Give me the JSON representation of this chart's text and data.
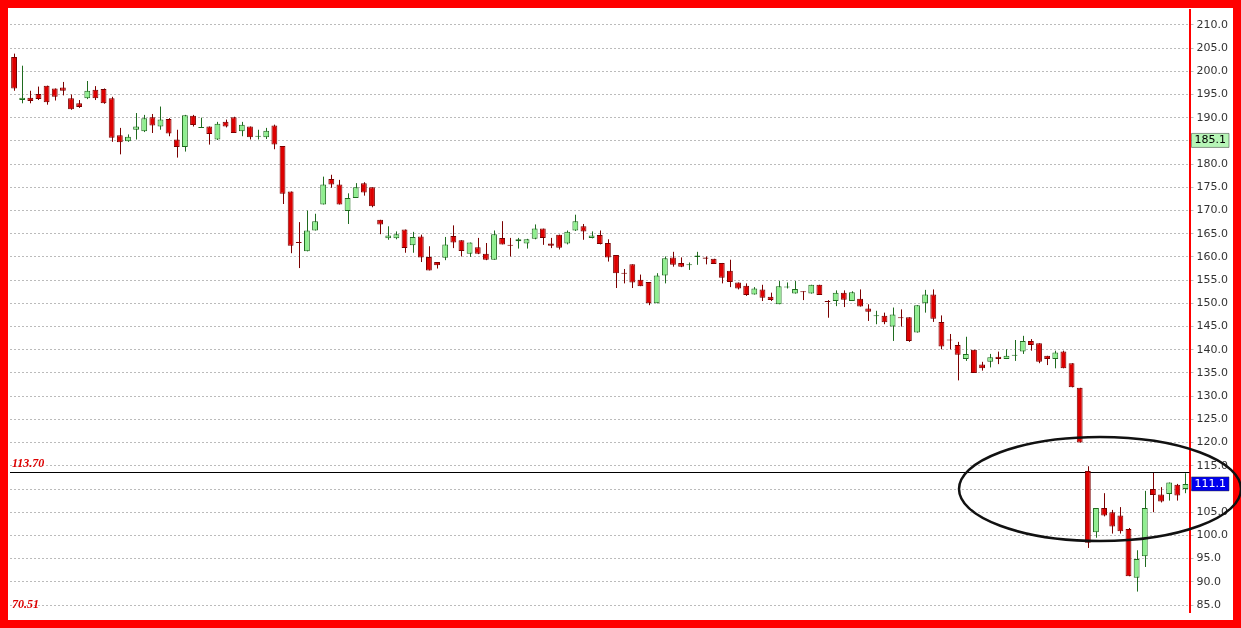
{
  "chart_data": {
    "type": "candlestick",
    "categories": [
      null,
      null,
      null,
      null,
      null,
      null,
      null,
      null,
      null,
      null,
      null,
      null,
      null,
      null,
      null,
      null,
      null,
      null,
      null,
      null,
      null,
      null,
      null,
      null,
      null,
      null,
      null,
      null,
      null,
      null,
      null,
      null,
      null,
      null,
      null,
      null,
      null,
      null,
      null,
      null,
      null,
      null,
      null,
      null,
      null,
      null,
      null,
      null,
      null,
      null,
      null,
      null,
      null,
      null,
      null,
      null,
      null,
      null,
      null,
      null,
      null,
      null,
      null,
      null,
      null,
      null,
      null,
      null,
      null,
      null,
      null,
      null,
      null,
      null,
      null,
      null,
      null,
      null,
      null,
      null,
      null,
      null,
      null,
      null,
      null,
      null,
      null,
      null,
      null,
      null,
      null,
      null,
      null,
      null,
      null,
      null,
      null,
      null,
      null,
      null,
      null,
      null,
      null,
      null,
      null,
      null,
      null,
      null,
      null,
      null,
      null,
      null,
      null,
      null,
      null,
      null,
      null,
      null,
      null,
      null,
      null,
      null,
      null,
      null,
      null,
      null,
      null,
      null,
      null,
      null,
      null,
      null,
      null,
      null,
      null,
      null,
      null,
      null,
      null,
      null,
      null,
      null,
      null,
      null,
      null
    ],
    "ohlc": [
      [
        203.1,
        203.8,
        195.8,
        196.3
      ],
      [
        193.8,
        201.2,
        193.1,
        194.3
      ],
      [
        194.3,
        195.8,
        193.1,
        193.6
      ],
      [
        195.1,
        196.7,
        193.8,
        194.0
      ],
      [
        196.9,
        196.9,
        192.8,
        193.3
      ],
      [
        196.3,
        196.3,
        193.7,
        194.5
      ],
      [
        196.5,
        197.7,
        194.8,
        195.8
      ],
      [
        194.2,
        195.0,
        191.7,
        191.8
      ],
      [
        193.1,
        193.8,
        192.1,
        192.3
      ],
      [
        194.2,
        197.9,
        194.0,
        195.8
      ],
      [
        196.0,
        196.8,
        193.8,
        194.2
      ],
      [
        196.2,
        196.3,
        193.0,
        193.1
      ],
      [
        194.2,
        194.5,
        184.8,
        185.7
      ],
      [
        186.2,
        187.8,
        182.1,
        184.7
      ],
      [
        184.9,
        186.4,
        184.8,
        185.9
      ],
      [
        187.4,
        191.0,
        185.3,
        188.1
      ],
      [
        187.1,
        190.6,
        186.9,
        189.9
      ],
      [
        190.1,
        190.8,
        186.7,
        188.3
      ],
      [
        188.1,
        192.4,
        187.4,
        189.6
      ],
      [
        189.7,
        189.9,
        186.0,
        186.6
      ],
      [
        185.3,
        187.4,
        181.4,
        183.7
      ],
      [
        183.7,
        190.6,
        182.7,
        190.5
      ],
      [
        190.4,
        190.6,
        188.1,
        188.4
      ],
      [
        187.8,
        190.0,
        187.8,
        188.0
      ],
      [
        188.1,
        188.1,
        184.2,
        186.5
      ],
      [
        185.3,
        189.1,
        185.2,
        188.7
      ],
      [
        189.1,
        189.6,
        187.9,
        188.1
      ],
      [
        190.1,
        190.2,
        186.7,
        186.7
      ],
      [
        187.1,
        189.1,
        186.0,
        188.5
      ],
      [
        188.1,
        188.1,
        185.3,
        185.8
      ],
      [
        185.9,
        187.4,
        185.3,
        186.1
      ],
      [
        185.8,
        187.8,
        185.4,
        187.2
      ],
      [
        188.3,
        188.5,
        183.2,
        184.2
      ],
      [
        183.9,
        183.9,
        171.4,
        173.6
      ],
      [
        174.1,
        174.1,
        160.8,
        162.4
      ],
      [
        163.1,
        167.5,
        157.6,
        163.0
      ],
      [
        161.2,
        170.0,
        161.2,
        165.7
      ],
      [
        165.7,
        169.3,
        165.7,
        167.7
      ],
      [
        171.3,
        177.3,
        171.3,
        175.6
      ],
      [
        176.8,
        177.7,
        174.9,
        175.6
      ],
      [
        175.6,
        176.6,
        171.3,
        171.3
      ],
      [
        169.9,
        173.7,
        167.1,
        172.7
      ],
      [
        172.7,
        175.9,
        172.7,
        175.0
      ],
      [
        175.9,
        176.1,
        173.2,
        173.9
      ],
      [
        175.0,
        175.0,
        170.7,
        170.9
      ],
      [
        168.0,
        168.0,
        164.9,
        167.0
      ],
      [
        164.0,
        166.6,
        163.7,
        164.6
      ],
      [
        164.0,
        165.5,
        163.8,
        164.9
      ],
      [
        165.9,
        165.9,
        160.9,
        161.9
      ],
      [
        162.5,
        165.4,
        160.9,
        164.3
      ],
      [
        164.4,
        164.8,
        158.9,
        159.9
      ],
      [
        160.0,
        162.3,
        157.1,
        157.1
      ],
      [
        158.9,
        158.9,
        157.5,
        158.2
      ],
      [
        159.8,
        164.3,
        159.3,
        162.7
      ],
      [
        164.5,
        166.8,
        161.9,
        163.1
      ],
      [
        163.6,
        163.6,
        160.1,
        161.3
      ],
      [
        160.7,
        163.1,
        160.0,
        163.1
      ],
      [
        162.1,
        164.1,
        160.6,
        160.7
      ],
      [
        160.7,
        163.0,
        159.3,
        159.4
      ],
      [
        159.4,
        165.7,
        159.4,
        164.9
      ],
      [
        164.1,
        167.7,
        162.7,
        162.7
      ],
      [
        162.5,
        164.1,
        160.1,
        162.4
      ],
      [
        163.4,
        164.1,
        161.8,
        163.8
      ],
      [
        162.9,
        163.9,
        161.8,
        163.8
      ],
      [
        163.9,
        167.0,
        163.8,
        166.1
      ],
      [
        166.1,
        166.1,
        162.6,
        164.1
      ],
      [
        162.9,
        164.1,
        161.9,
        162.4
      ],
      [
        164.8,
        164.8,
        161.6,
        162.0
      ],
      [
        162.9,
        165.7,
        162.7,
        165.4
      ],
      [
        165.7,
        169.1,
        165.6,
        167.7
      ],
      [
        166.6,
        167.1,
        163.7,
        165.5
      ],
      [
        164.1,
        165.5,
        164.0,
        164.6
      ],
      [
        164.7,
        165.7,
        162.7,
        162.8
      ],
      [
        163.0,
        163.8,
        159.0,
        159.9
      ],
      [
        160.4,
        160.4,
        153.3,
        156.5
      ],
      [
        156.6,
        157.4,
        154.3,
        156.4
      ],
      [
        158.4,
        158.4,
        153.3,
        154.5
      ],
      [
        155.1,
        156.2,
        153.7,
        153.7
      ],
      [
        154.6,
        154.6,
        149.6,
        150.0
      ],
      [
        150.0,
        156.5,
        150.0,
        156.0
      ],
      [
        156.0,
        160.1,
        154.3,
        159.7
      ],
      [
        159.9,
        161.1,
        157.9,
        158.3
      ],
      [
        158.7,
        159.9,
        157.8,
        157.9
      ],
      [
        158.2,
        158.8,
        157.2,
        158.4
      ],
      [
        160.0,
        161.1,
        158.3,
        160.3
      ],
      [
        159.9,
        160.1,
        158.4,
        159.6
      ],
      [
        159.6,
        159.6,
        158.5,
        158.5
      ],
      [
        158.7,
        158.7,
        154.3,
        155.5
      ],
      [
        157.0,
        159.4,
        153.5,
        154.6
      ],
      [
        154.5,
        154.5,
        153.0,
        153.2
      ],
      [
        153.8,
        154.3,
        151.6,
        151.8
      ],
      [
        151.9,
        153.5,
        151.9,
        153.2
      ],
      [
        153.0,
        154.0,
        150.5,
        151.2
      ],
      [
        151.4,
        152.3,
        150.5,
        150.7
      ],
      [
        149.8,
        154.8,
        149.8,
        153.7
      ],
      [
        153.4,
        154.5,
        153.2,
        153.6
      ],
      [
        152.1,
        154.8,
        152.1,
        153.1
      ],
      [
        152.6,
        152.6,
        150.7,
        152.4
      ],
      [
        152.1,
        154.0,
        152.1,
        154.0
      ],
      [
        154.0,
        154.0,
        151.8,
        151.8
      ],
      [
        150.5,
        150.7,
        146.9,
        150.3
      ],
      [
        150.5,
        152.8,
        149.4,
        152.3
      ],
      [
        152.3,
        152.8,
        149.2,
        150.8
      ],
      [
        150.5,
        152.6,
        150.5,
        152.4
      ],
      [
        151.0,
        153.0,
        149.3,
        149.3
      ],
      [
        148.9,
        149.8,
        146.2,
        148.2
      ],
      [
        147.2,
        148.4,
        145.5,
        147.4
      ],
      [
        147.3,
        148.0,
        145.5,
        145.9
      ],
      [
        145.0,
        149.1,
        141.9,
        147.6
      ],
      [
        147.0,
        148.7,
        145.0,
        146.8
      ],
      [
        147.0,
        147.0,
        141.7,
        141.9
      ],
      [
        143.7,
        149.6,
        143.7,
        149.6
      ],
      [
        150.0,
        152.9,
        148.0,
        151.9
      ],
      [
        151.9,
        153.0,
        146.0,
        146.7
      ],
      [
        146.0,
        147.4,
        140.1,
        140.7
      ],
      [
        142.2,
        143.4,
        140.1,
        142.0
      ],
      [
        141.0,
        141.7,
        133.4,
        138.9
      ],
      [
        138.0,
        142.8,
        137.6,
        139.1
      ],
      [
        140.0,
        140.0,
        135.0,
        135.0
      ],
      [
        136.8,
        137.4,
        135.5,
        136.0
      ],
      [
        137.4,
        139.1,
        136.2,
        138.4
      ],
      [
        138.5,
        139.6,
        136.9,
        138.0
      ],
      [
        138.0,
        140.1,
        138.0,
        138.7
      ],
      [
        138.7,
        142.1,
        137.6,
        138.8
      ],
      [
        139.6,
        143.0,
        139.1,
        141.9
      ],
      [
        141.9,
        142.3,
        139.8,
        141.0
      ],
      [
        141.4,
        141.4,
        137.1,
        137.4
      ],
      [
        138.7,
        138.7,
        136.7,
        138.0
      ],
      [
        138.0,
        139.8,
        136.0,
        139.4
      ],
      [
        139.6,
        139.8,
        136.0,
        136.0
      ],
      [
        137.1,
        137.1,
        131.9,
        131.9
      ],
      [
        131.8,
        131.8,
        120.0,
        120.0
      ],
      [
        113.9,
        114.9,
        97.3,
        98.4
      ],
      [
        100.7,
        105.9,
        99.5,
        105.9
      ],
      [
        105.9,
        109.1,
        104.1,
        104.3
      ],
      [
        105.0,
        105.5,
        100.4,
        101.9
      ],
      [
        104.3,
        106.1,
        100.4,
        100.9
      ],
      [
        101.4,
        101.6,
        91.2,
        91.2
      ],
      [
        90.9,
        96.8,
        87.9,
        94.9
      ],
      [
        95.5,
        109.6,
        93.2,
        105.9
      ],
      [
        110.0,
        113.6,
        105.0,
        108.7
      ],
      [
        108.8,
        110.4,
        107.1,
        107.3
      ],
      [
        108.9,
        111.4,
        107.5,
        111.4
      ],
      [
        110.9,
        111.1,
        107.5,
        108.6
      ],
      [
        110.0,
        113.4,
        109.1,
        111.1
      ]
    ],
    "ylim": [
      83.5,
      213.2
    ],
    "yticks": [
      {
        "value": 85,
        "label": "85.0"
      },
      {
        "value": 90,
        "label": "90.0"
      },
      {
        "value": 95,
        "label": "95.0"
      },
      {
        "value": 100,
        "label": "100.0"
      },
      {
        "value": 105,
        "label": "105.0"
      },
      {
        "value": 110,
        "label": null
      },
      {
        "value": 115,
        "label": "115.0"
      },
      {
        "value": 120,
        "label": "120.0"
      },
      {
        "value": 125,
        "label": "125.0"
      },
      {
        "value": 130,
        "label": "130.0"
      },
      {
        "value": 135,
        "label": "135.0"
      },
      {
        "value": 140,
        "label": "140.0"
      },
      {
        "value": 145,
        "label": "145.0"
      },
      {
        "value": 150,
        "label": "150.0"
      },
      {
        "value": 155,
        "label": "155.0"
      },
      {
        "value": 160,
        "label": "160.0"
      },
      {
        "value": 165,
        "label": "165.0"
      },
      {
        "value": 170,
        "label": "170.0"
      },
      {
        "value": 175,
        "label": "175.0"
      },
      {
        "value": 180,
        "label": "180.0"
      },
      {
        "value": 185,
        "label": null
      },
      {
        "value": 190,
        "label": "190.0"
      },
      {
        "value": 195,
        "label": "195.0"
      },
      {
        "value": 200,
        "label": "200.0"
      },
      {
        "value": 205,
        "label": "205.0"
      },
      {
        "value": 210,
        "label": "210.0"
      }
    ],
    "ref_lines": [
      {
        "axis": "y",
        "value": 113.7,
        "label": "113.70",
        "color": "#000000"
      }
    ],
    "annotations": [
      {
        "text": "185.1",
        "y": 185.1
      },
      {
        "text": "111.1",
        "y": 111.1
      },
      "70.51"
    ],
    "grid": "y",
    "tick_labels": "y"
  }
}
